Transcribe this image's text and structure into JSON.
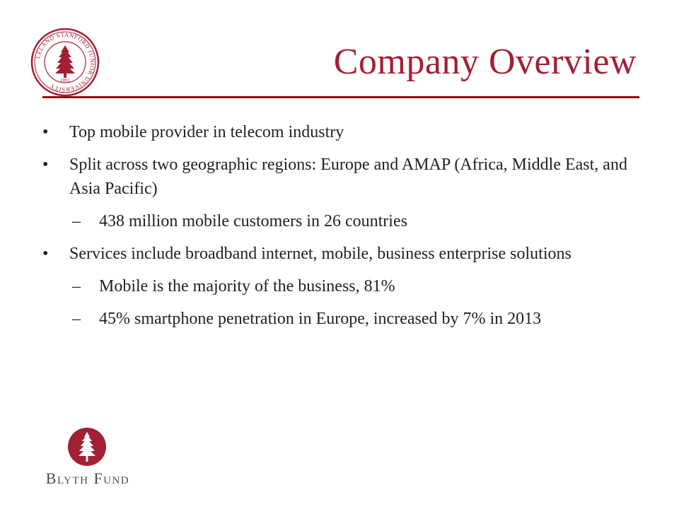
{
  "slide": {
    "title": "Company Overview",
    "bullets": [
      {
        "level": 1,
        "text": "Top mobile provider in telecom industry"
      },
      {
        "level": 1,
        "text": "Split across two geographic regions: Europe and AMAP (Africa, Middle East, and Asia Pacific)"
      },
      {
        "level": 2,
        "text": "438 million mobile customers in 26 countries"
      },
      {
        "level": 1,
        "text": "Services include broadband internet, mobile, business enterprise solutions"
      },
      {
        "level": 2,
        "text": "Mobile is the majority of the business, 81%"
      },
      {
        "level": 2,
        "text": "45% smartphone penetration in Europe, increased by 7% in 2013"
      }
    ],
    "bullet_mark": "•",
    "sub_bullet_mark": "–"
  },
  "seal": {
    "icon": "university-seal-icon",
    "inscription": "LELAND STANFORD JUNIOR UNIVERSITY",
    "year": "1891"
  },
  "logo": {
    "icon": "tree-logo-icon",
    "text": "Blyth Fund"
  },
  "colors": {
    "accent": "#a31f34",
    "rule": "#8c1515",
    "text": "#222222",
    "logo_text": "#4a4a4a"
  }
}
